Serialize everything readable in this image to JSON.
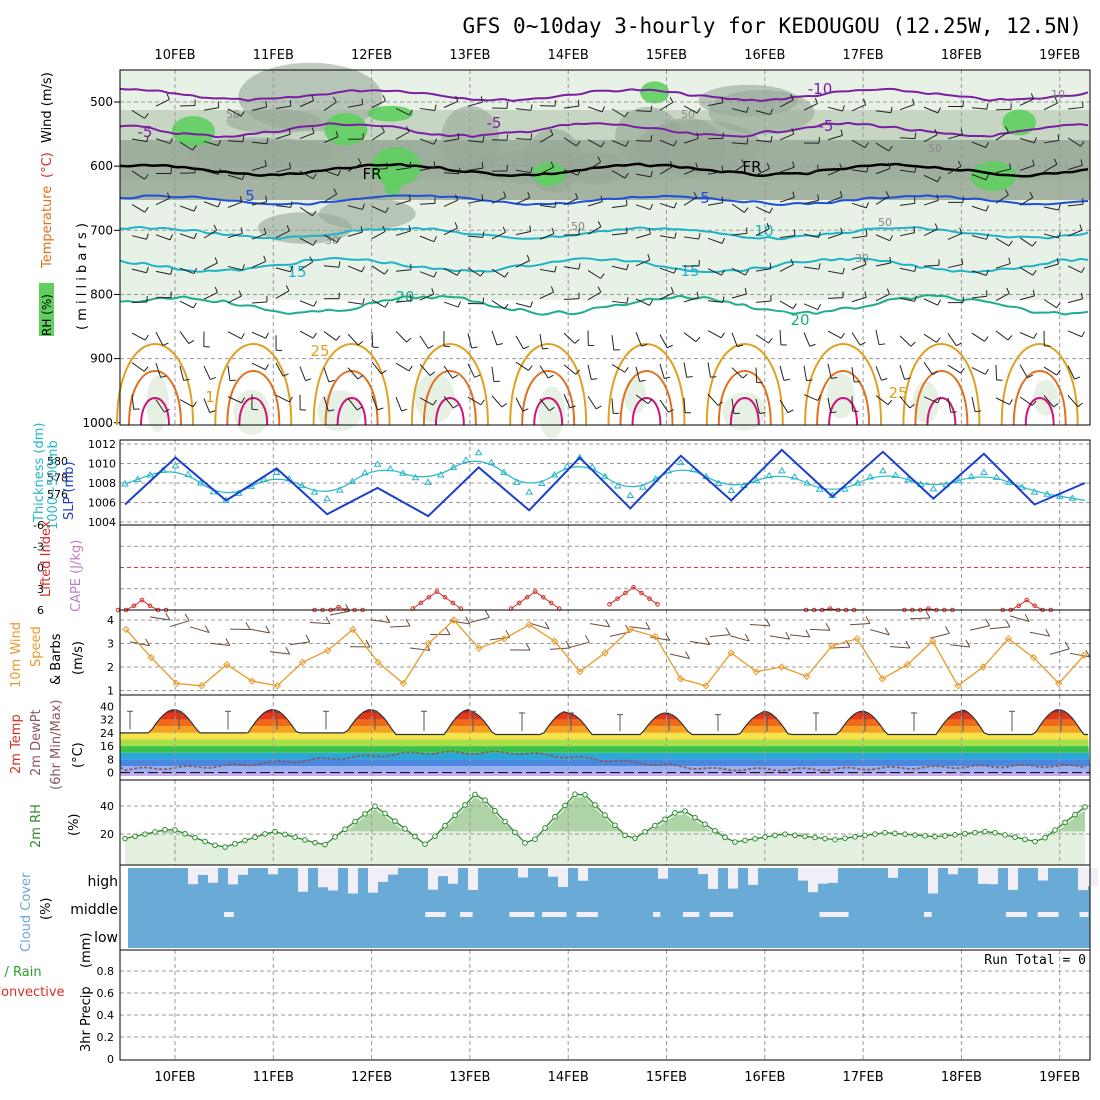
{
  "title": "GFS 0~10day 3-hourly for KEDOUGOU (12.25W, 12.5N)",
  "dates": [
    "10FEB",
    "11FEB",
    "12FEB",
    "13FEB",
    "14FEB",
    "15FEB",
    "16FEB",
    "17FEB",
    "18FEB",
    "19FEB"
  ],
  "run_total": "Run Total = 0",
  "colors": {
    "wind_barb": "#222222",
    "rh_light": "#e3efe0",
    "rh_mid": "#bfd1bd",
    "rh_dark": "#98a897",
    "rh_green": "#5fcf5f",
    "temp_purple": "#7b1fa2",
    "temp_blue": "#1f4fd6",
    "temp_cyan": "#1fb3c8",
    "temp_teal": "#1fae8a",
    "temp_yellow": "#e0a020",
    "temp_orange": "#e07020",
    "temp_magenta": "#d0127a",
    "slp": "#1a3fcf",
    "thickness": "#26b7c9",
    "lifted_index": "#d0302a",
    "wind_speed": "#e79a2a",
    "rh2m": "#2e8b2e",
    "cloud": "#6aaad6",
    "dewpoint": "#8a5a5a"
  },
  "panels": {
    "upper": {
      "left_label_1": "RH (%)",
      "left_label_2": "Temperature",
      "left_label_3": "(°C)",
      "left_label_4": "Wind (m/s)",
      "axis_label": "( m i l l i b a r s )",
      "ticks": [
        "500",
        "600",
        "700",
        "800",
        "900",
        "1000"
      ],
      "contour_labels": [
        "-10",
        "-5",
        "-5",
        "-5",
        "FR",
        "FR",
        "5",
        "5",
        "10",
        "15",
        "15",
        "20",
        "20",
        "25",
        "25",
        "50",
        "50",
        "30",
        "50",
        "50",
        "50",
        "30",
        "10",
        "1"
      ]
    },
    "slp": {
      "left_label_a": "Thickness (dm)",
      "left_label_b": "1000~500mb",
      "right_label": "SLP (mb)",
      "ticks_left": [
        "580",
        "578",
        "576"
      ],
      "ticks_right": [
        "1012",
        "1010",
        "1008",
        "1006",
        "1004"
      ]
    },
    "li": {
      "left_label_a": "Lifted Index",
      "left_label_b": "CAPE (J/kg)",
      "ticks": [
        "-6",
        "-3",
        "0",
        "3",
        "6"
      ]
    },
    "wind10": {
      "left_label_a": "10m Wind",
      "left_label_b": "Speed",
      "left_label_c": "& Barbs",
      "unit": "(m/s)",
      "ticks": [
        "4",
        "3",
        "2",
        "1"
      ]
    },
    "temp2m": {
      "left_label_a": "2m Temp",
      "left_label_b": "2m DewPt",
      "left_label_c": "(6hr Min/Max)",
      "unit": "(°C)",
      "ticks": [
        "40",
        "32",
        "24",
        "16",
        "8",
        "0"
      ]
    },
    "rh2m": {
      "left_label": "2m RH",
      "unit": "(%)",
      "ticks": [
        "40",
        "20"
      ]
    },
    "cloud": {
      "left_label": "Cloud Cover",
      "unit": "(%)",
      "levels": [
        "high",
        "middle",
        "low"
      ]
    },
    "precip": {
      "left_label_a": "Total / Rain",
      "left_label_b": "Convective",
      "left_label_c": "3hr Precip",
      "unit": "(mm)",
      "ticks": [
        "0.8",
        "0.6",
        "0.4",
        "0.2",
        "0"
      ]
    }
  },
  "chart_data": [
    {
      "type": "line",
      "title": "SLP / 1000~500mb Thickness",
      "x": [
        "10FEB 00",
        "10FEB 12",
        "11FEB 00",
        "11FEB 12",
        "12FEB 00",
        "12FEB 12",
        "13FEB 00",
        "13FEB 12",
        "14FEB 00",
        "14FEB 12",
        "15FEB 00",
        "15FEB 12",
        "16FEB 00",
        "16FEB 12",
        "17FEB 00",
        "17FEB 12",
        "18FEB 00",
        "18FEB 12",
        "19FEB 00",
        "19FEB 12"
      ],
      "ylim_slp": [
        1004,
        1012
      ],
      "ylim_thickness": [
        575,
        581
      ],
      "series": [
        {
          "name": "SLP (mb)",
          "values": [
            1005.8,
            1010.6,
            1006.2,
            1009.5,
            1004.8,
            1007.5,
            1004.6,
            1009.6,
            1005.2,
            1010.6,
            1005.4,
            1010.8,
            1006.2,
            1011.4,
            1006.6,
            1011.2,
            1006.4,
            1011.0,
            1005.8,
            1008.0
          ]
        },
        {
          "name": "Thickness (dm)",
          "values": [
            577.2,
            579.4,
            575.2,
            578.6,
            575.4,
            579.6,
            577.4,
            581.0,
            576.2,
            580.4,
            575.8,
            579.8,
            576.4,
            578.8,
            575.8,
            578.8,
            576.6,
            578.6,
            576.2,
            575.2
          ]
        }
      ]
    },
    {
      "type": "line",
      "title": "Lifted Index",
      "x": [
        "10FEB",
        "11FEB",
        "12FEB",
        "13FEB",
        "14FEB",
        "15FEB",
        "16FEB",
        "17FEB",
        "18FEB",
        "19FEB"
      ],
      "ylim": [
        -6,
        6
      ],
      "series": [
        {
          "name": "Lifted Index",
          "values": [
            4.6,
            6,
            5.6,
            3.4,
            3.4,
            2.8,
            6,
            5.8,
            5.8,
            4.6
          ]
        }
      ]
    },
    {
      "type": "line",
      "title": "10m Wind Speed",
      "x": [
        "10FEB 00",
        "10FEB 06",
        "10FEB 12",
        "10FEB 18",
        "11FEB 00",
        "11FEB 06",
        "11FEB 12",
        "11FEB 18",
        "12FEB 00",
        "12FEB 06",
        "12FEB 12",
        "12FEB 18",
        "13FEB 00",
        "13FEB 06",
        "13FEB 12",
        "13FEB 18",
        "14FEB 00",
        "14FEB 06",
        "14FEB 12",
        "14FEB 18",
        "15FEB 00",
        "15FEB 06",
        "15FEB 12",
        "15FEB 18",
        "16FEB 00",
        "16FEB 06",
        "16FEB 12",
        "16FEB 18",
        "17FEB 00",
        "17FEB 06",
        "17FEB 12",
        "17FEB 18",
        "18FEB 00",
        "18FEB 06",
        "18FEB 12",
        "18FEB 18",
        "19FEB 00",
        "19FEB 06",
        "19FEB 12"
      ],
      "ylim": [
        1,
        4.3
      ],
      "series": [
        {
          "name": "Speed (m/s)",
          "values": [
            3.6,
            2.4,
            1.3,
            1.2,
            2.1,
            1.4,
            1.2,
            2.2,
            2.7,
            3.6,
            2.2,
            1.3,
            3.0,
            4.0,
            2.8,
            3.2,
            3.8,
            3.1,
            1.8,
            2.6,
            3.6,
            3.3,
            1.5,
            1.2,
            2.6,
            1.8,
            2.0,
            1.6,
            2.9,
            3.2,
            1.5,
            2.1,
            3.1,
            1.2,
            2.0,
            3.2,
            2.4,
            1.3,
            2.5
          ]
        }
      ]
    },
    {
      "type": "line",
      "title": "2m Temp / DewPt",
      "x": [
        "10FEB",
        "11FEB",
        "12FEB",
        "13FEB",
        "14FEB",
        "15FEB",
        "16FEB",
        "17FEB",
        "18FEB",
        "19FEB"
      ],
      "ylim": [
        -2,
        42
      ],
      "series": [
        {
          "name": "2m Temp max (°C)",
          "values": [
            38,
            38,
            38,
            38,
            37,
            36,
            36,
            37,
            37,
            38
          ]
        },
        {
          "name": "2m Temp min (°C)",
          "values": [
            24,
            24,
            24,
            23,
            23,
            23,
            23,
            23,
            23,
            23
          ]
        },
        {
          "name": "2m DewPt (°C)",
          "values": [
            2,
            4,
            8,
            12,
            12,
            7,
            2,
            2,
            3,
            4
          ]
        }
      ]
    },
    {
      "type": "area",
      "title": "2m RH",
      "x": [
        "10FEB",
        "10FEB 12",
        "11FEB",
        "11FEB 12",
        "12FEB",
        "12FEB 12",
        "13FEB",
        "13FEB 12",
        "14FEB",
        "14FEB 12",
        "15FEB",
        "15FEB 12",
        "16FEB",
        "16FEB 12",
        "17FEB",
        "17FEB 12",
        "18FEB",
        "18FEB 12",
        "19FEB",
        "19FEB 12"
      ],
      "ylim": [
        0,
        55
      ],
      "series": [
        {
          "name": "2m RH (%)",
          "values": [
            16,
            24,
            10,
            22,
            12,
            40,
            12,
            50,
            11,
            52,
            15,
            38,
            14,
            20,
            16,
            21,
            18,
            22,
            14,
            42
          ]
        }
      ]
    },
    {
      "type": "bar",
      "title": "3hr Precip",
      "x": [
        "10FEB",
        "11FEB",
        "12FEB",
        "13FEB",
        "14FEB",
        "15FEB",
        "16FEB",
        "17FEB",
        "18FEB",
        "19FEB"
      ],
      "ylim": [
        0,
        0.9
      ],
      "series": [
        {
          "name": "Total / Rain",
          "values": [
            0,
            0,
            0,
            0,
            0,
            0,
            0,
            0,
            0,
            0
          ]
        },
        {
          "name": "Convective",
          "values": [
            0,
            0,
            0,
            0,
            0,
            0,
            0,
            0,
            0,
            0
          ]
        }
      ]
    }
  ]
}
